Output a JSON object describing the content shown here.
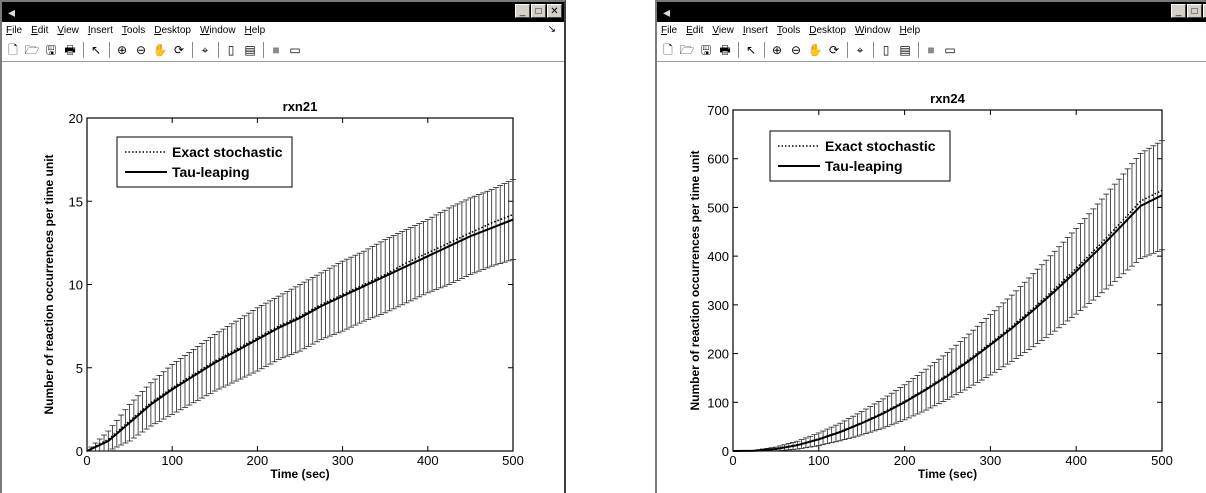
{
  "windows": [
    {
      "menu": [
        {
          "u": "F",
          "r": "ile"
        },
        {
          "u": "E",
          "r": "dit"
        },
        {
          "u": "V",
          "r": "iew"
        },
        {
          "u": "I",
          "r": "nsert"
        },
        {
          "u": "T",
          "r": "ools"
        },
        {
          "u": "D",
          "r": "esktop"
        },
        {
          "u": "W",
          "r": "indow"
        },
        {
          "u": "H",
          "r": "elp"
        }
      ]
    },
    {
      "menu": [
        {
          "u": "F",
          "r": "ile"
        },
        {
          "u": "E",
          "r": "dit"
        },
        {
          "u": "V",
          "r": "iew"
        },
        {
          "u": "I",
          "r": "nsert"
        },
        {
          "u": "T",
          "r": "ools"
        },
        {
          "u": "D",
          "r": "esktop"
        },
        {
          "u": "W",
          "r": "indow"
        },
        {
          "u": "H",
          "r": "elp"
        }
      ]
    }
  ],
  "chart_data": [
    {
      "type": "line",
      "title": "rxn21",
      "xlabel": "Time (sec)",
      "ylabel": "Number of reaction occurrences per time unit",
      "xlim": [
        0,
        500
      ],
      "ylim": [
        0,
        20
      ],
      "xticks": [
        "0",
        "100",
        "200",
        "300",
        "400",
        "500"
      ],
      "yticks": [
        "0",
        "5",
        "10",
        "15",
        "20"
      ],
      "legend": {
        "placement": "top-left",
        "entries": [
          "Exact stochastic",
          "Tau-leaping"
        ]
      },
      "errorbars": true,
      "x": [
        0,
        25,
        50,
        75,
        100,
        125,
        150,
        175,
        200,
        225,
        250,
        275,
        300,
        325,
        350,
        375,
        400,
        425,
        450,
        475,
        500
      ],
      "series": [
        {
          "name": "Exact stochastic",
          "style": "dotted",
          "values": [
            0,
            0.7,
            1.8,
            2.9,
            3.8,
            4.6,
            5.4,
            6.1,
            6.8,
            7.5,
            8.1,
            8.8,
            9.4,
            10.0,
            10.6,
            11.3,
            11.9,
            12.5,
            13.1,
            13.7,
            14.2
          ]
        },
        {
          "name": "Tau-leaping",
          "style": "solid",
          "values": [
            0,
            0.6,
            1.7,
            2.8,
            3.7,
            4.5,
            5.3,
            6.0,
            6.7,
            7.4,
            8.0,
            8.7,
            9.3,
            9.9,
            10.5,
            11.1,
            11.7,
            12.3,
            12.9,
            13.4,
            13.9
          ]
        }
      ],
      "error": [
        0,
        0.6,
        1.1,
        1.3,
        1.5,
        1.6,
        1.7,
        1.8,
        1.9,
        1.9,
        2.0,
        2.0,
        2.1,
        2.1,
        2.2,
        2.2,
        2.2,
        2.3,
        2.3,
        2.3,
        2.4
      ]
    },
    {
      "type": "line",
      "title": "rxn24",
      "xlabel": "Time (sec)",
      "ylabel": "Number of reaction occurrences per time unit",
      "xlim": [
        0,
        500
      ],
      "ylim": [
        0,
        700
      ],
      "xticks": [
        "0",
        "100",
        "200",
        "300",
        "400",
        "500"
      ],
      "yticks": [
        "0",
        "100",
        "200",
        "300",
        "400",
        "500",
        "600",
        "700"
      ],
      "legend": {
        "placement": "top-left",
        "entries": [
          "Exact stochastic",
          "Tau-leaping"
        ]
      },
      "errorbars": true,
      "x": [
        0,
        25,
        50,
        75,
        100,
        125,
        150,
        175,
        200,
        225,
        250,
        275,
        300,
        325,
        350,
        375,
        400,
        425,
        450,
        475,
        500
      ],
      "series": [
        {
          "name": "Exact stochastic",
          "style": "dotted",
          "values": [
            0,
            0.5,
            4,
            12,
            25,
            40,
            58,
            79,
            102,
            128,
            157,
            188,
            221,
            256,
            293,
            333,
            375,
            419,
            465,
            513,
            535
          ]
        },
        {
          "name": "Tau-leaping",
          "style": "solid",
          "values": [
            0,
            0.5,
            4,
            12,
            24,
            39,
            57,
            77,
            100,
            126,
            154,
            185,
            218,
            252,
            289,
            328,
            369,
            412,
            457,
            503,
            525
          ]
        }
      ],
      "error": [
        0,
        1,
        4,
        8,
        13,
        18,
        24,
        30,
        36,
        42,
        48,
        55,
        62,
        68,
        75,
        82,
        88,
        95,
        101,
        108,
        112
      ]
    }
  ]
}
